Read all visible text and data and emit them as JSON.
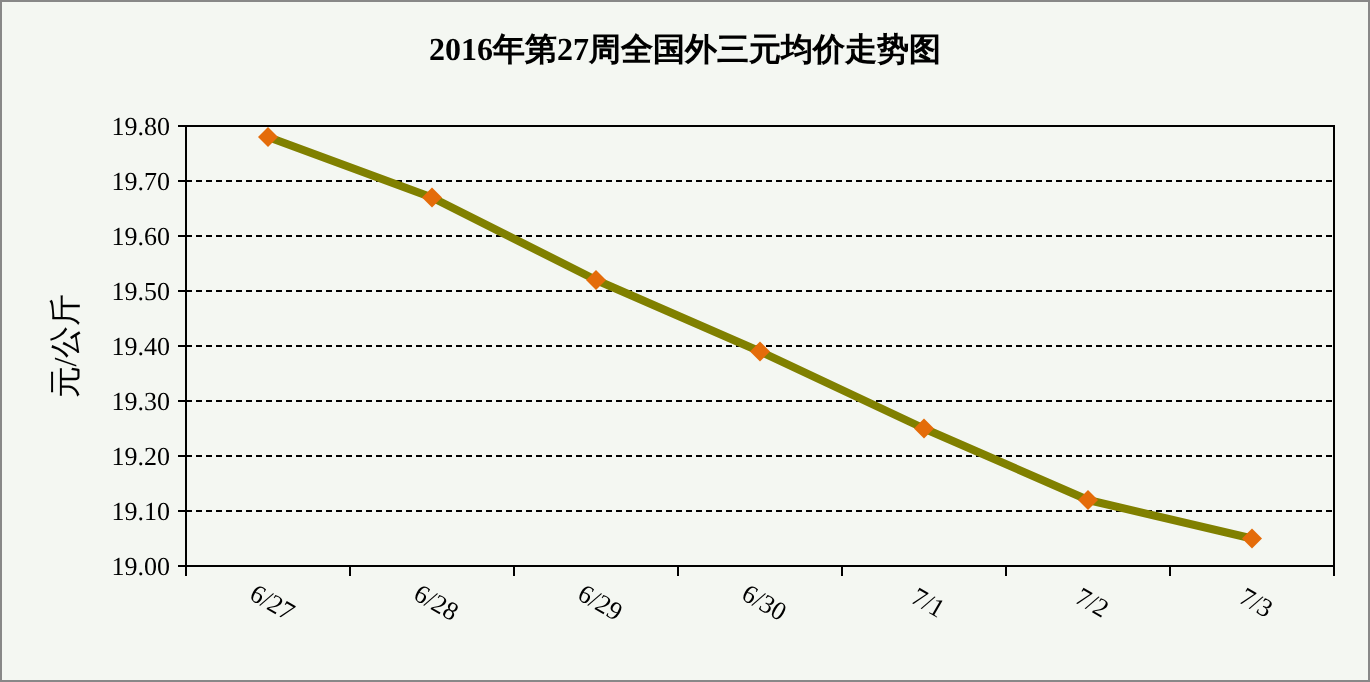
{
  "chart_data": {
    "type": "line",
    "title": "2016年第27周全国外三元均价走势图",
    "ylabel": "元/公斤",
    "categories": [
      "6/27",
      "6/28",
      "6/29",
      "6/30",
      "7/1",
      "7/2",
      "7/3"
    ],
    "series": [
      {
        "color": "#808000",
        "colors": [
          "#e46c0a",
          "#e46c0a",
          "#e46c0a",
          "#e46c0a",
          "#e46c0a",
          "#e46c0a",
          "#e46c0a"
        ],
        "values": [
          19.78,
          19.67,
          19.52,
          19.39,
          19.25,
          19.12,
          19.05
        ]
      }
    ],
    "ylim": [
      19.0,
      19.8
    ],
    "yticks": [
      {
        "value": 19.0,
        "label": "19.00"
      },
      {
        "value": 19.1,
        "label": "19.10"
      },
      {
        "value": 19.2,
        "label": "19.20"
      },
      {
        "value": 19.3,
        "label": "19.30"
      },
      {
        "value": 19.4,
        "label": "19.40"
      },
      {
        "value": 19.5,
        "label": "19.50"
      },
      {
        "value": 19.6,
        "label": "19.60"
      },
      {
        "value": 19.7,
        "label": "19.70"
      },
      {
        "value": 19.8,
        "label": "19.80"
      }
    ],
    "grid": "y",
    "marker": "diamond"
  }
}
